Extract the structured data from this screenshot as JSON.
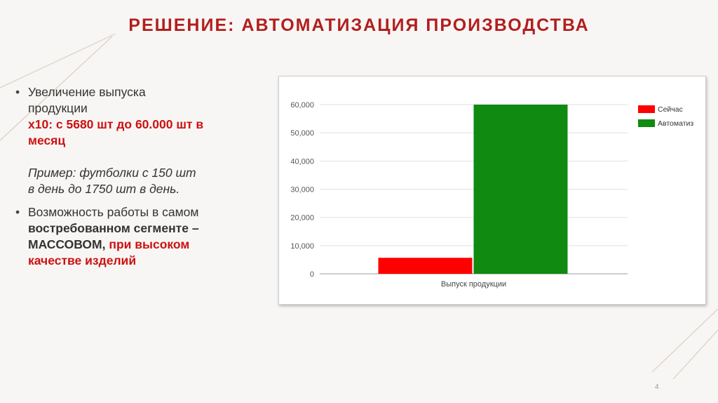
{
  "slide": {
    "title": "РЕШЕНИЕ: АВТОМАТИЗАЦИЯ ПРОИЗВОДСТВА",
    "page_number": "4"
  },
  "bullets": {
    "b1": {
      "l1": "Увеличение выпуска",
      "l2": "продукции",
      "l3": "х10: с 5680 шт до 60.000 шт в",
      "l4": "месяц",
      "l5": "Пример: футболки с 150 шт",
      "l6": "в день до 1750 шт в день."
    },
    "b2": {
      "l1": "Возможность работы в самом",
      "l2": "востребованном сегменте –",
      "l3a": "МАССОВОМ,",
      "l3b": "при высоком",
      "l4": "качестве изделий"
    }
  },
  "chart_data": {
    "type": "bar",
    "categories": [
      "Выпуск продукции"
    ],
    "series": [
      {
        "name": "Сейчас",
        "values": [
          5680
        ],
        "color": "#ff0000"
      },
      {
        "name": "Автоматиз",
        "values": [
          60000
        ],
        "color": "#108a10"
      }
    ],
    "yticks": [
      "60,000",
      "50,000",
      "40,000",
      "30,000",
      "20,000",
      "10,000",
      "0"
    ],
    "ylim": [
      0,
      60000
    ],
    "grid": true,
    "legend_position": "right"
  }
}
